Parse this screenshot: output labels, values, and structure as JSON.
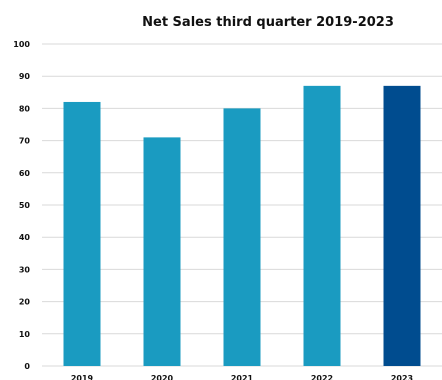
{
  "chart_data": {
    "type": "bar",
    "title": "Net Sales third quarter 2019-2023",
    "xlabel": "",
    "ylabel": "",
    "categories": [
      "2019",
      "2020",
      "2021",
      "2022",
      "2023"
    ],
    "values": [
      82,
      71,
      80,
      87,
      87
    ],
    "ylim": [
      0,
      100
    ],
    "yticks": [
      0,
      10,
      20,
      30,
      40,
      50,
      60,
      70,
      80,
      90,
      100
    ],
    "grid": true,
    "legend": "none",
    "colors": {
      "bar": "#1a9bc1",
      "highlight": "#004c8f",
      "grid": "#d9d9d9"
    },
    "highlight_category": "2023"
  }
}
